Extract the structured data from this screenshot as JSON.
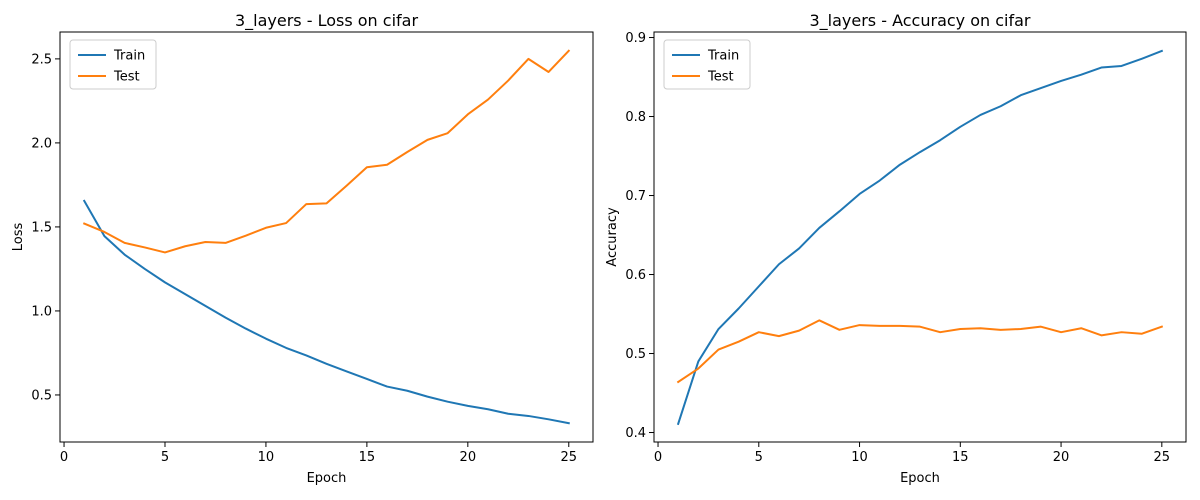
{
  "chart_data": [
    {
      "type": "line",
      "title": "3_layers - Loss on cifar",
      "xlabel": "Epoch",
      "ylabel": "Loss",
      "x": [
        1,
        2,
        3,
        4,
        5,
        6,
        7,
        8,
        9,
        10,
        11,
        12,
        13,
        14,
        15,
        16,
        17,
        18,
        19,
        20,
        21,
        22,
        23,
        24,
        25
      ],
      "xlim": [
        -0.2,
        26.2
      ],
      "ylim": [
        0.22,
        2.66
      ],
      "xticks": [
        0,
        5,
        10,
        15,
        20,
        25
      ],
      "yticks": [
        0.5,
        1.0,
        1.5,
        2.0,
        2.5
      ],
      "xtick_labels": [
        "0",
        "5",
        "10",
        "15",
        "20",
        "25"
      ],
      "ytick_labels": [
        "0.5",
        "1.0",
        "1.5",
        "2.0",
        "2.5"
      ],
      "legend": "upper-left",
      "grid": false,
      "series": [
        {
          "name": "Train",
          "color": "#1f77b4",
          "values": [
            1.655,
            1.445,
            1.335,
            1.25,
            1.17,
            1.1,
            1.03,
            0.96,
            0.895,
            0.835,
            0.78,
            0.735,
            0.685,
            0.64,
            0.595,
            0.55,
            0.525,
            0.49,
            0.46,
            0.435,
            0.415,
            0.388,
            0.375,
            0.355,
            0.332
          ]
        },
        {
          "name": "Test",
          "color": "#ff7f0e",
          "values": [
            1.52,
            1.47,
            1.405,
            1.378,
            1.348,
            1.385,
            1.41,
            1.405,
            1.448,
            1.495,
            1.523,
            1.636,
            1.64,
            1.746,
            1.855,
            1.87,
            1.946,
            2.018,
            2.058,
            2.17,
            2.258,
            2.371,
            2.5,
            2.422,
            2.548
          ]
        }
      ]
    },
    {
      "type": "line",
      "title": "3_layers - Accuracy on cifar",
      "xlabel": "Epoch",
      "ylabel": "Accuracy",
      "x": [
        1,
        2,
        3,
        4,
        5,
        6,
        7,
        8,
        9,
        10,
        11,
        12,
        13,
        14,
        15,
        16,
        17,
        18,
        19,
        20,
        21,
        22,
        23,
        24,
        25
      ],
      "xlim": [
        -0.2,
        26.2
      ],
      "ylim": [
        0.388,
        0.907
      ],
      "xticks": [
        0,
        5,
        10,
        15,
        20,
        25
      ],
      "yticks": [
        0.4,
        0.5,
        0.6,
        0.7,
        0.8,
        0.9
      ],
      "xtick_labels": [
        "0",
        "5",
        "10",
        "15",
        "20",
        "25"
      ],
      "ytick_labels": [
        "0.4",
        "0.5",
        "0.6",
        "0.7",
        "0.8",
        "0.9"
      ],
      "legend": "upper-left",
      "grid": false,
      "series": [
        {
          "name": "Train",
          "color": "#1f77b4",
          "values": [
            0.411,
            0.49,
            0.531,
            0.557,
            0.585,
            0.613,
            0.633,
            0.659,
            0.68,
            0.702,
            0.719,
            0.739,
            0.755,
            0.77,
            0.787,
            0.802,
            0.813,
            0.827,
            0.836,
            0.845,
            0.853,
            0.862,
            0.864,
            0.873,
            0.883
          ]
        },
        {
          "name": "Test",
          "color": "#ff7f0e",
          "values": [
            0.464,
            0.481,
            0.505,
            0.515,
            0.527,
            0.522,
            0.529,
            0.542,
            0.53,
            0.536,
            0.535,
            0.535,
            0.534,
            0.527,
            0.531,
            0.532,
            0.53,
            0.531,
            0.534,
            0.527,
            0.532,
            0.523,
            0.527,
            0.525,
            0.534
          ]
        }
      ]
    }
  ]
}
